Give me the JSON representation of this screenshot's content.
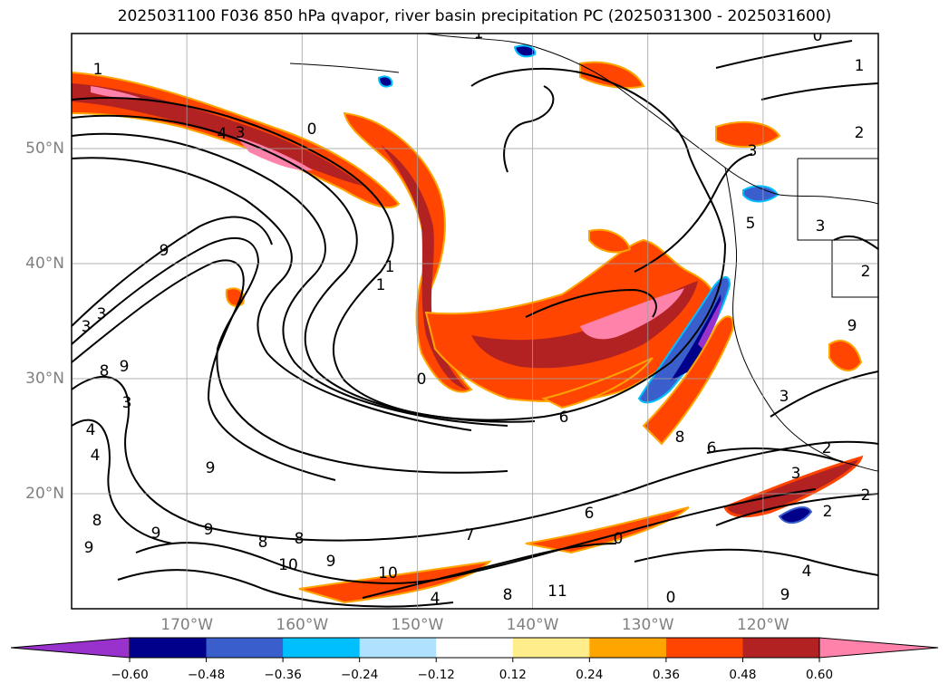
{
  "title": "2025031100 F036 850 hPa qvapor, river basin precipitation PC (2025031300 - 2025031600)",
  "map": {
    "projection": "plate-carree",
    "lon_range": [
      -180,
      -110
    ],
    "lat_range": [
      10,
      60
    ],
    "gridlines": true,
    "lat_labels": [
      {
        "lat": 50,
        "label": "50°N"
      },
      {
        "lat": 40,
        "label": "40°N"
      },
      {
        "lat": 30,
        "label": "30°N"
      },
      {
        "lat": 20,
        "label": "20°N"
      }
    ],
    "lon_labels": [
      {
        "lon": -170,
        "label": "170°W"
      },
      {
        "lon": -160,
        "label": "160°W"
      },
      {
        "lon": -150,
        "label": "150°W"
      },
      {
        "lon": -140,
        "label": "140°W"
      },
      {
        "lon": -130,
        "label": "130°W"
      },
      {
        "lon": -120,
        "label": "120°W"
      }
    ],
    "contour_labels": [
      "1",
      "2",
      "3",
      "4",
      "5",
      "6",
      "7",
      "8",
      "9",
      "10",
      "11",
      "0"
    ]
  },
  "colorbar": {
    "extend": "both",
    "levels": [
      -0.72,
      -0.6,
      -0.48,
      -0.36,
      -0.24,
      -0.12,
      0.12,
      0.24,
      0.36,
      0.48,
      0.6,
      0.72
    ],
    "colors": [
      "#9932cc",
      "#00008b",
      "#3a5fcd",
      "#00bfff",
      "#b0e2ff",
      "#ffffff",
      "#ffec8b",
      "#ffa500",
      "#ff4500",
      "#b22222",
      "#ff82ab"
    ],
    "under_color": "#9932cc",
    "over_color": "#ff82ab",
    "tick_labels": [
      "−0.60",
      "−0.48",
      "−0.36",
      "−0.24",
      "−0.12",
      "0.12",
      "0.24",
      "0.36",
      "0.48",
      "0.60"
    ]
  }
}
